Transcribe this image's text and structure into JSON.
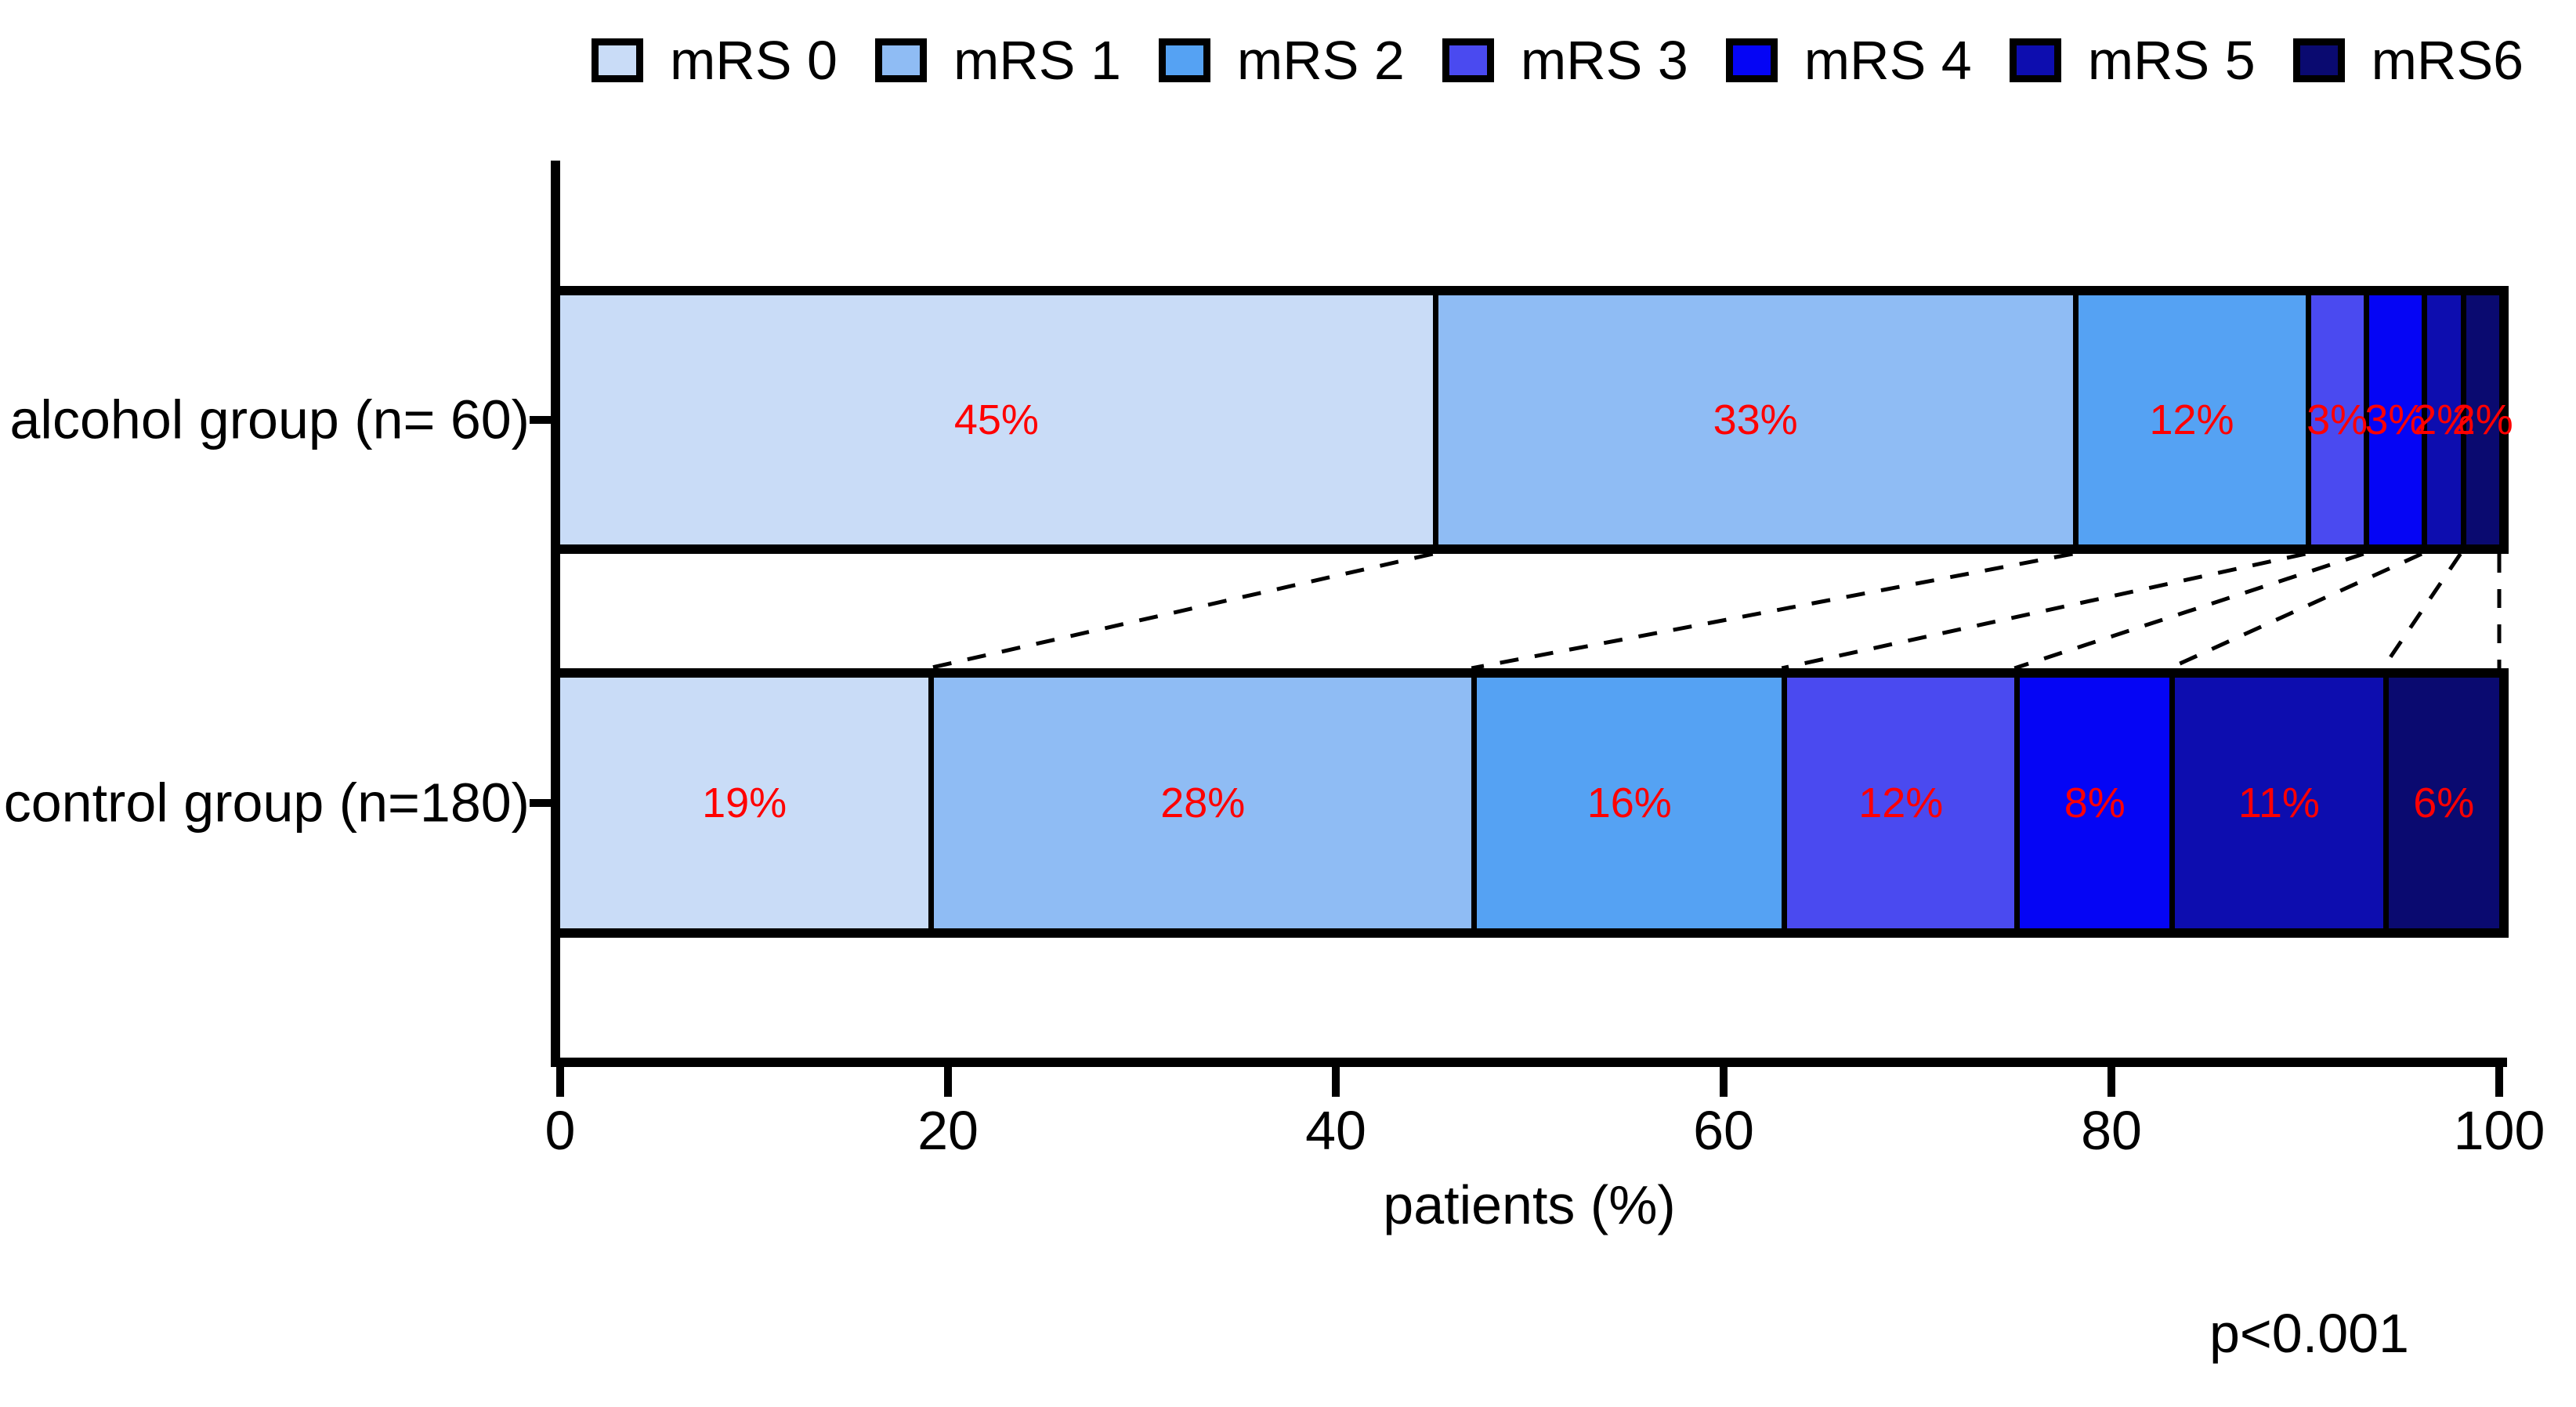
{
  "legend": {
    "items": [
      {
        "label": "mRS 0",
        "color": "#C9DCF7"
      },
      {
        "label": "mRS 1",
        "color": "#8FBCF4"
      },
      {
        "label": "mRS 2",
        "color": "#55A2F3"
      },
      {
        "label": "mRS 3",
        "color": "#4A4AF0"
      },
      {
        "label": "mRS 4",
        "color": "#0505F5"
      },
      {
        "label": "mRS 5",
        "color": "#0D0DAF"
      },
      {
        "label": "mRS6",
        "color": "#0A0A70"
      }
    ]
  },
  "chart_data": {
    "type": "bar",
    "orientation": "horizontal-stacked",
    "categories": [
      "alcohol group (n= 60)",
      "control group (n=180)"
    ],
    "series": [
      {
        "name": "mRS 0",
        "color": "#C9DCF7",
        "values": [
          45,
          19
        ]
      },
      {
        "name": "mRS 1",
        "color": "#8FBCF4",
        "values": [
          33,
          28
        ]
      },
      {
        "name": "mRS 2",
        "color": "#55A2F3",
        "values": [
          12,
          16
        ]
      },
      {
        "name": "mRS 3",
        "color": "#4A4AF0",
        "values": [
          3,
          12
        ]
      },
      {
        "name": "mRS 4",
        "color": "#0505F5",
        "values": [
          3,
          8
        ]
      },
      {
        "name": "mRS 5",
        "color": "#0D0DAF",
        "values": [
          2,
          11
        ]
      },
      {
        "name": "mRS6",
        "color": "#0A0A70",
        "values": [
          2,
          6
        ]
      }
    ],
    "bar_labels": [
      [
        "45%",
        "33%",
        "12%",
        "3%",
        "3%",
        "2%",
        "2%"
      ],
      [
        "19%",
        "28%",
        "16%",
        "12%",
        "8%",
        "11%",
        "6%"
      ]
    ],
    "bar_label_color": "#FF0000",
    "xlabel": "patients (%)",
    "x_ticks": [
      "0",
      "20",
      "40",
      "60",
      "80",
      "100"
    ],
    "xlim": [
      0,
      100
    ],
    "grid": false,
    "legend_position": "top",
    "annotation": "p<0.001",
    "connector_style": "dashed"
  }
}
